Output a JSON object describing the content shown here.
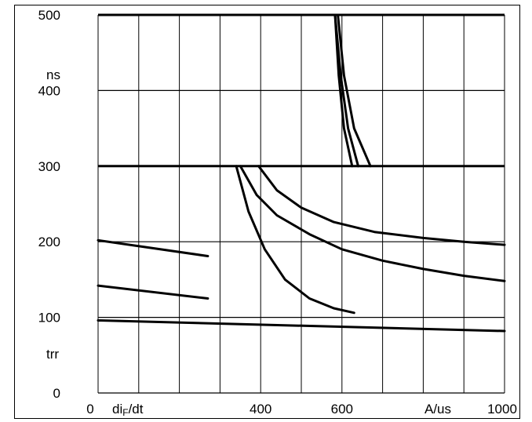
{
  "chart_data": {
    "type": "line",
    "x_label": "di",
    "x_label_sub": "F",
    "x_label_tail": "/dt",
    "x_unit": "A/us",
    "y_unit": "ns",
    "y_label": "trr",
    "x_ticks": [
      {
        "value": 0,
        "label": "0"
      },
      {
        "value": 400,
        "label": "400"
      },
      {
        "value": 600,
        "label": "600"
      },
      {
        "value": 1000,
        "label": "1000"
      }
    ],
    "y_ticks": [
      {
        "value": 0,
        "label": "0"
      },
      {
        "value": 100,
        "label": "100"
      },
      {
        "value": 200,
        "label": "200"
      },
      {
        "value": 300,
        "label": "300"
      },
      {
        "value": 400,
        "label": "400"
      },
      {
        "value": 500,
        "label": "500"
      }
    ],
    "xlim": [
      0,
      1000
    ],
    "ylim": [
      0,
      500
    ],
    "grid": true,
    "series": [
      {
        "x": [
          0,
          270
        ],
        "y": [
          202,
          181
        ]
      },
      {
        "x": [
          0,
          270
        ],
        "y": [
          142,
          125
        ]
      },
      {
        "x": [
          0,
          1000
        ],
        "y": [
          96,
          82
        ]
      },
      {
        "x": [
          350,
          390,
          440,
          520,
          600,
          700,
          800,
          900,
          1000
        ],
        "y": [
          300,
          262,
          235,
          210,
          190,
          175,
          164,
          155,
          148
        ]
      },
      {
        "x": [
          340,
          370,
          410,
          460,
          520,
          580,
          630
        ],
        "y": [
          300,
          240,
          190,
          150,
          125,
          112,
          106
        ]
      },
      {
        "x": [
          395,
          440,
          500,
          580,
          680,
          800,
          900,
          1000
        ],
        "y": [
          300,
          268,
          245,
          226,
          213,
          205,
          200,
          196
        ]
      },
      {
        "x": [
          583,
          597,
          615,
          640
        ],
        "y": [
          500,
          420,
          350,
          300
        ]
      },
      {
        "x": [
          590,
          605,
          630,
          670
        ],
        "y": [
          500,
          420,
          350,
          300
        ]
      },
      {
        "x": [
          583,
          592,
          605,
          625
        ],
        "y": [
          500,
          420,
          350,
          300
        ]
      }
    ]
  }
}
